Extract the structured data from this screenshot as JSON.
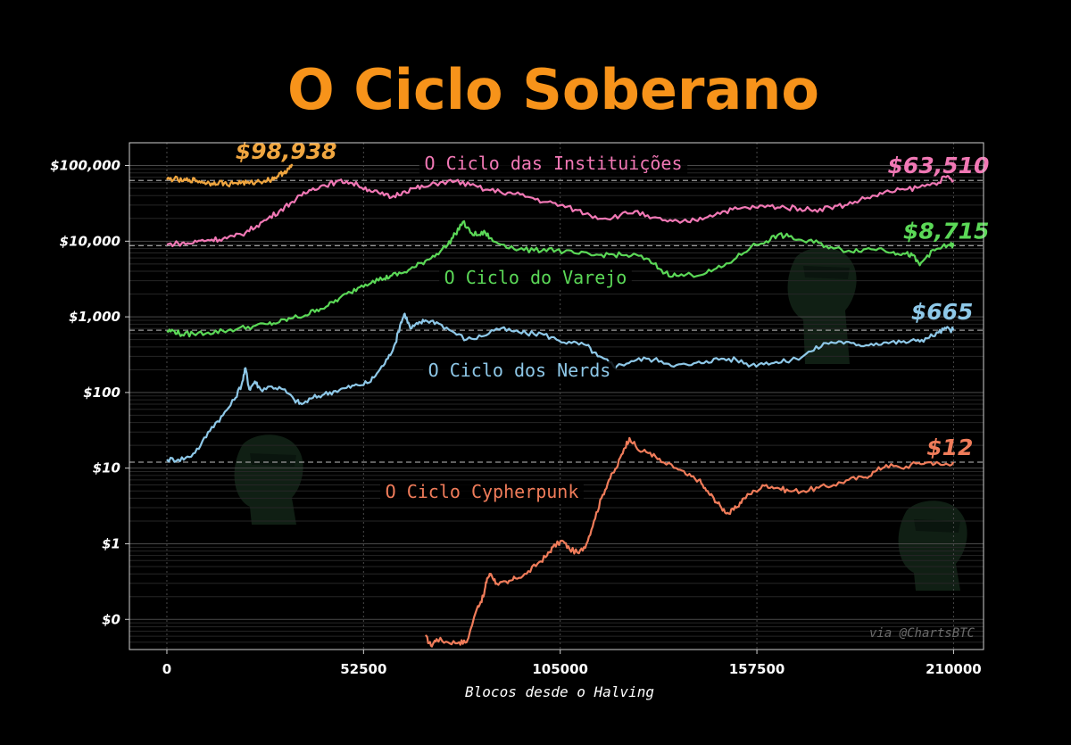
{
  "chart_data": {
    "type": "line",
    "title": "O Ciclo Soberano",
    "xlabel": "Blocos desde o Halving",
    "ylabel": "",
    "y_scale": "log",
    "xlim": [
      -10000,
      218000
    ],
    "ylim": [
      0.04,
      200000
    ],
    "x_ticks": [
      0,
      52500,
      105000,
      157500,
      210000
    ],
    "x_tick_labels": [
      "0",
      "52500",
      "105000",
      "157500",
      "210000"
    ],
    "y_ticks": [
      0.1,
      1,
      10,
      100,
      1000,
      10000,
      100000
    ],
    "y_tick_labels": [
      "$0",
      "$1",
      "$10",
      "$100",
      "$1,000",
      "$10,000",
      "$100,000"
    ],
    "grid": true,
    "watermark": "via @ChartsBTC",
    "series": [
      {
        "name": "O Ciclo Cypherpunk",
        "end_label": "$12",
        "color": "#F07C5A",
        "points": [
          [
            69000,
            0.06
          ],
          [
            70500,
            0.045
          ],
          [
            72000,
            0.055
          ],
          [
            75000,
            0.05
          ],
          [
            78000,
            0.05
          ],
          [
            80000,
            0.05
          ],
          [
            83000,
            0.15
          ],
          [
            84500,
            0.2
          ],
          [
            85500,
            0.35
          ],
          [
            86500,
            0.4
          ],
          [
            88000,
            0.3
          ],
          [
            91000,
            0.3
          ],
          [
            93000,
            0.35
          ],
          [
            96000,
            0.4
          ],
          [
            99000,
            0.55
          ],
          [
            101500,
            0.7
          ],
          [
            103000,
            0.9
          ],
          [
            105500,
            1.1
          ],
          [
            107500,
            0.85
          ],
          [
            110000,
            0.75
          ],
          [
            112000,
            1.0
          ],
          [
            114000,
            2.0
          ],
          [
            116000,
            4.0
          ],
          [
            118000,
            7.0
          ],
          [
            120000,
            10
          ],
          [
            122000,
            18
          ],
          [
            123500,
            25
          ],
          [
            126000,
            17
          ],
          [
            129000,
            16
          ],
          [
            132000,
            12
          ],
          [
            136000,
            10
          ],
          [
            139000,
            8
          ],
          [
            142000,
            7
          ],
          [
            144000,
            5
          ],
          [
            146000,
            4
          ],
          [
            148000,
            3
          ],
          [
            150000,
            2.5
          ],
          [
            152000,
            3
          ],
          [
            154000,
            4
          ],
          [
            157000,
            5
          ],
          [
            160000,
            6
          ],
          [
            163000,
            5.5
          ],
          [
            166000,
            5
          ],
          [
            170000,
            5
          ],
          [
            174000,
            5.5
          ],
          [
            178000,
            6
          ],
          [
            182000,
            7
          ],
          [
            186000,
            7.5
          ],
          [
            189000,
            9
          ],
          [
            192000,
            11
          ],
          [
            196000,
            10
          ],
          [
            200000,
            11.5
          ],
          [
            204000,
            12
          ],
          [
            207000,
            11
          ],
          [
            210000,
            12
          ]
        ]
      },
      {
        "name": "O Ciclo dos Nerds",
        "end_label": "$665",
        "color": "#8EC8E8",
        "points": [
          [
            0,
            13
          ],
          [
            3000,
            13
          ],
          [
            6000,
            14
          ],
          [
            9000,
            20
          ],
          [
            12000,
            35
          ],
          [
            15000,
            50
          ],
          [
            18000,
            80
          ],
          [
            20000,
            130
          ],
          [
            21000,
            210
          ],
          [
            22000,
            110
          ],
          [
            23500,
            140
          ],
          [
            25000,
            110
          ],
          [
            28000,
            120
          ],
          [
            31000,
            110
          ],
          [
            34000,
            80
          ],
          [
            36000,
            70
          ],
          [
            39000,
            85
          ],
          [
            42000,
            95
          ],
          [
            45000,
            105
          ],
          [
            48000,
            115
          ],
          [
            51000,
            125
          ],
          [
            54000,
            135
          ],
          [
            56500,
            190
          ],
          [
            59000,
            280
          ],
          [
            61000,
            450
          ],
          [
            62500,
            850
          ],
          [
            63500,
            1100
          ],
          [
            65000,
            700
          ],
          [
            67000,
            800
          ],
          [
            69000,
            900
          ],
          [
            72000,
            850
          ],
          [
            76000,
            650
          ],
          [
            80000,
            500
          ],
          [
            84000,
            550
          ],
          [
            88000,
            700
          ],
          [
            92000,
            650
          ],
          [
            96000,
            600
          ],
          [
            100000,
            600
          ],
          [
            104000,
            500
          ],
          [
            108000,
            450
          ],
          [
            112000,
            420
          ],
          [
            115000,
            300
          ],
          [
            118000,
            250
          ],
          [
            120000,
            220
          ],
          [
            124000,
            260
          ],
          [
            128000,
            280
          ],
          [
            132000,
            260
          ],
          [
            136000,
            230
          ],
          [
            140000,
            230
          ],
          [
            144000,
            260
          ],
          [
            148000,
            280
          ],
          [
            152000,
            270
          ],
          [
            156000,
            230
          ],
          [
            160000,
            250
          ],
          [
            164000,
            250
          ],
          [
            168000,
            280
          ],
          [
            172000,
            350
          ],
          [
            176000,
            450
          ],
          [
            180000,
            470
          ],
          [
            184000,
            420
          ],
          [
            188000,
            440
          ],
          [
            192000,
            460
          ],
          [
            196000,
            460
          ],
          [
            200000,
            480
          ],
          [
            203000,
            520
          ],
          [
            206000,
            620
          ],
          [
            208000,
            700
          ],
          [
            210000,
            665
          ]
        ]
      },
      {
        "name": "O Ciclo do Varejo",
        "end_label": "$8,715",
        "color": "#5BD857",
        "points": [
          [
            0,
            650
          ],
          [
            2000,
            650
          ],
          [
            4000,
            580
          ],
          [
            7000,
            600
          ],
          [
            11000,
            620
          ],
          [
            15000,
            650
          ],
          [
            19000,
            700
          ],
          [
            23000,
            750
          ],
          [
            27000,
            800
          ],
          [
            30000,
            850
          ],
          [
            33000,
            950
          ],
          [
            37000,
            1050
          ],
          [
            40000,
            1250
          ],
          [
            43000,
            1400
          ],
          [
            46000,
            1750
          ],
          [
            49000,
            2100
          ],
          [
            52000,
            2600
          ],
          [
            55000,
            3000
          ],
          [
            58000,
            3200
          ],
          [
            60000,
            3500
          ],
          [
            63000,
            3800
          ],
          [
            66000,
            4500
          ],
          [
            69000,
            5500
          ],
          [
            72000,
            6800
          ],
          [
            75000,
            9000
          ],
          [
            77000,
            12500
          ],
          [
            79000,
            18000
          ],
          [
            81000,
            13000
          ],
          [
            83000,
            12000
          ],
          [
            85000,
            13000
          ],
          [
            87000,
            10000
          ],
          [
            90000,
            9000
          ],
          [
            94000,
            7800
          ],
          [
            98000,
            7500
          ],
          [
            102000,
            8000
          ],
          [
            106000,
            7200
          ],
          [
            110000,
            6800
          ],
          [
            114000,
            6500
          ],
          [
            118000,
            6700
          ],
          [
            122000,
            6500
          ],
          [
            126000,
            6400
          ],
          [
            130000,
            5000
          ],
          [
            133000,
            3800
          ],
          [
            136000,
            3500
          ],
          [
            140000,
            3600
          ],
          [
            144000,
            3800
          ],
          [
            148000,
            4500
          ],
          [
            152000,
            6000
          ],
          [
            156000,
            8500
          ],
          [
            160000,
            10000
          ],
          [
            163000,
            12000
          ],
          [
            166000,
            11500
          ],
          [
            170000,
            10000
          ],
          [
            174000,
            9500
          ],
          [
            178000,
            8000
          ],
          [
            182000,
            7500
          ],
          [
            186000,
            7800
          ],
          [
            190000,
            8000
          ],
          [
            194000,
            7200
          ],
          [
            197000,
            6800
          ],
          [
            199000,
            6500
          ],
          [
            201000,
            4800
          ],
          [
            203000,
            6500
          ],
          [
            206000,
            8000
          ],
          [
            209000,
            9000
          ],
          [
            210000,
            8715
          ]
        ]
      },
      {
        "name": "O Ciclo das Instituições",
        "end_label": "$63,510",
        "color": "#F178B5",
        "points": [
          [
            0,
            9000
          ],
          [
            3000,
            9400
          ],
          [
            6000,
            9300
          ],
          [
            9000,
            10200
          ],
          [
            12000,
            10500
          ],
          [
            15000,
            10800
          ],
          [
            18000,
            11500
          ],
          [
            21000,
            13000
          ],
          [
            24000,
            16000
          ],
          [
            27000,
            20000
          ],
          [
            30000,
            25000
          ],
          [
            33000,
            32000
          ],
          [
            36000,
            40000
          ],
          [
            39000,
            50000
          ],
          [
            42000,
            55000
          ],
          [
            45000,
            60000
          ],
          [
            48000,
            62000
          ],
          [
            51000,
            55000
          ],
          [
            54000,
            48000
          ],
          [
            57000,
            42000
          ],
          [
            60000,
            38000
          ],
          [
            63000,
            45000
          ],
          [
            66000,
            50000
          ],
          [
            69000,
            52000
          ],
          [
            73000,
            60000
          ],
          [
            77000,
            62000
          ],
          [
            81000,
            55000
          ],
          [
            85000,
            48000
          ],
          [
            89000,
            45000
          ],
          [
            93000,
            42000
          ],
          [
            97000,
            38000
          ],
          [
            101000,
            33000
          ],
          [
            105000,
            30000
          ],
          [
            109000,
            26000
          ],
          [
            113000,
            22000
          ],
          [
            117000,
            20000
          ],
          [
            121000,
            22000
          ],
          [
            125000,
            25000
          ],
          [
            129000,
            20000
          ],
          [
            133000,
            19000
          ],
          [
            137000,
            17500
          ],
          [
            141000,
            19000
          ],
          [
            145000,
            22000
          ],
          [
            149000,
            25000
          ],
          [
            153000,
            27000
          ],
          [
            157000,
            28000
          ],
          [
            161000,
            29000
          ],
          [
            165000,
            28000
          ],
          [
            169000,
            27000
          ],
          [
            173000,
            26000
          ],
          [
            177000,
            28000
          ],
          [
            181000,
            30000
          ],
          [
            185000,
            35000
          ],
          [
            189000,
            40000
          ],
          [
            193000,
            45000
          ],
          [
            197000,
            48000
          ],
          [
            201000,
            52000
          ],
          [
            205000,
            58000
          ],
          [
            208000,
            70000
          ],
          [
            210000,
            63510
          ]
        ]
      },
      {
        "name": "",
        "end_label": "$98,938",
        "color": "#F0A640",
        "points": [
          [
            0,
            65000
          ],
          [
            2000,
            67000
          ],
          [
            4000,
            62000
          ],
          [
            6000,
            65000
          ],
          [
            8000,
            63000
          ],
          [
            10000,
            60000
          ],
          [
            12000,
            58000
          ],
          [
            14000,
            61000
          ],
          [
            16000,
            56000
          ],
          [
            18000,
            59000
          ],
          [
            20000,
            60000
          ],
          [
            22000,
            58000
          ],
          [
            24000,
            61000
          ],
          [
            26000,
            63000
          ],
          [
            28000,
            66000
          ],
          [
            29500,
            72000
          ],
          [
            31000,
            80000
          ],
          [
            32500,
            90000
          ],
          [
            33500,
            98938
          ]
        ]
      }
    ],
    "label_positions": [
      {
        "series": 3,
        "text": "O Ciclo das Instituições"
      },
      {
        "series": 2,
        "text": "O Ciclo do Varejo"
      },
      {
        "series": 1,
        "text": "O Ciclo dos Nerds"
      },
      {
        "series": 0,
        "text": "O Ciclo Cypherpunk"
      }
    ]
  }
}
